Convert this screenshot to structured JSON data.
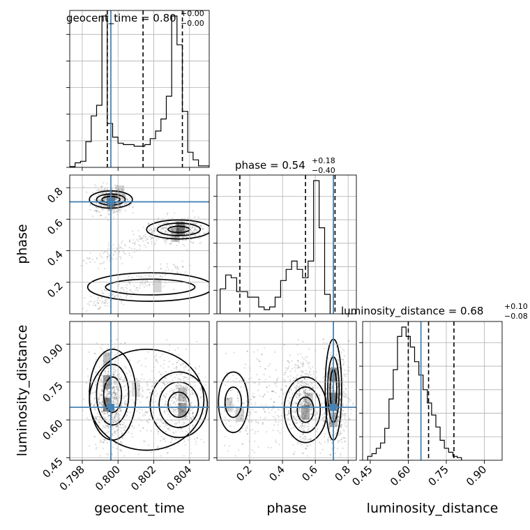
{
  "chart_data": {
    "type": "corner",
    "parameters": [
      "geocent_time",
      "phase",
      "luminosity_distance"
    ],
    "truths": [
      0.7996,
      0.71,
      0.65
    ],
    "colors": {
      "truth": "#4682b4",
      "hist": "#000000",
      "grid": "#b0b0b0",
      "scatter": "#808080"
    },
    "grid": true,
    "diagonal": [
      {
        "name": "geocent_time",
        "title": "geocent_time = 0.80",
        "err_plus": "+0.00",
        "err_minus": "−0.00",
        "quantiles": [
          0.7994,
          0.8014,
          0.8036
        ],
        "xlim": [
          0.7973,
          0.8051
        ],
        "ticks": [
          0.798,
          0.8,
          0.802,
          0.804
        ],
        "tick_labels": [
          "0.798",
          "0.800",
          "0.802",
          "0.804"
        ],
        "hist": {
          "edges_start": 0.7973,
          "bin_width": 0.0003,
          "counts": [
            0.5,
            3,
            4,
            17,
            34,
            41,
            100,
            29,
            20,
            16,
            15,
            15,
            14,
            14,
            15,
            19,
            24,
            32,
            47,
            100,
            81,
            37,
            10,
            5,
            1,
            1
          ]
        }
      },
      {
        "name": "phase",
        "title": "phase = 0.54",
        "err_plus": "+0.18",
        "err_minus": "−0.40",
        "quantiles": [
          0.14,
          0.54,
          0.72
        ],
        "xlim": [
          0.0,
          0.85
        ],
        "ticks": [
          0.2,
          0.4,
          0.6,
          0.8
        ],
        "tick_labels": [
          "0.2",
          "0.4",
          "0.6",
          "0.8"
        ],
        "hist": {
          "edges_start": 0.02,
          "bin_width": 0.0335,
          "counts": [
            18,
            28,
            26,
            16,
            16,
            12,
            12,
            5,
            3,
            5,
            12,
            24,
            32,
            38,
            32,
            26,
            38,
            96,
            62,
            14
          ]
        }
      },
      {
        "name": "luminosity_distance",
        "title": "luminosity_distance = 0.68",
        "err_plus": "+0.10",
        "err_minus": "−0.08",
        "quantiles": [
          0.6,
          0.68,
          0.78
        ],
        "xlim": [
          0.42,
          0.97
        ],
        "ticks": [
          0.45,
          0.6,
          0.75,
          0.9
        ],
        "tick_labels": [
          "0.45",
          "0.60",
          "0.75",
          "0.90"
        ],
        "hist": {
          "edges_start": 0.44,
          "bin_width": 0.0168,
          "counts": [
            3,
            5,
            9,
            13,
            24,
            46,
            68,
            93,
            100,
            93,
            85,
            74,
            64,
            53,
            43,
            34,
            25,
            15,
            9,
            6,
            3,
            2
          ]
        }
      }
    ],
    "axes_limits": {
      "phase_y": [
        0.0,
        0.88
      ],
      "luminosity_distance_y": [
        0.44,
        0.99
      ]
    },
    "y_ticks": {
      "phase": {
        "values": [
          0.2,
          0.4,
          0.6,
          0.8
        ],
        "labels": [
          "0.2",
          "0.4",
          "0.6",
          "0.8"
        ]
      },
      "luminosity_distance": {
        "values": [
          0.45,
          0.6,
          0.75,
          0.9
        ],
        "labels": [
          "0.45",
          "0.60",
          "0.75",
          "0.90"
        ]
      }
    },
    "axis_labels": {
      "bottom": [
        "geocent_time",
        "phase",
        "luminosity_distance"
      ],
      "left": [
        "phase",
        "luminosity_distance"
      ]
    }
  }
}
